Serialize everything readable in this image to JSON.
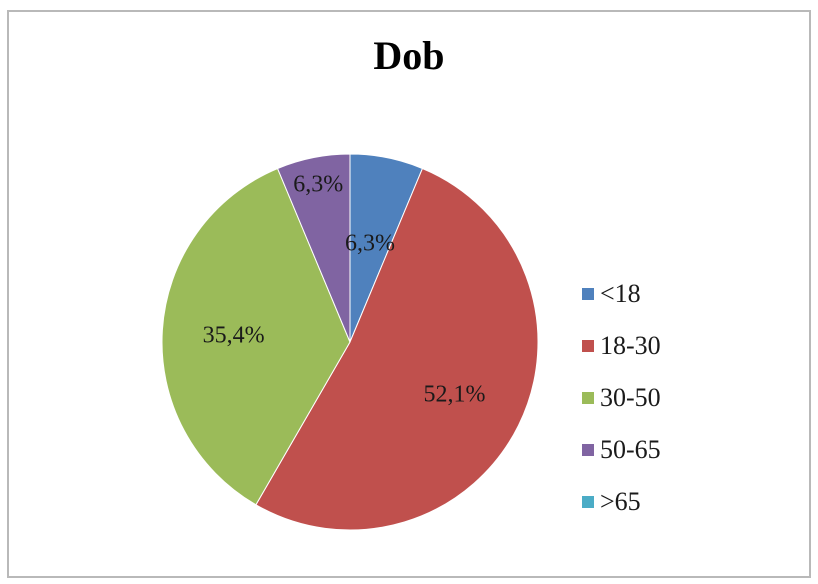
{
  "chart_data": {
    "type": "pie",
    "title": "Dob",
    "legend_position": "right",
    "slices": [
      {
        "label": "<18",
        "value": 6.3,
        "value_label": "6,3%",
        "color": "#4f81bd"
      },
      {
        "label": "18-30",
        "value": 52.1,
        "value_label": "52,1%",
        "color": "#c0504d"
      },
      {
        "label": "30-50",
        "value": 35.4,
        "value_label": "35,4%",
        "color": "#9bbb59"
      },
      {
        "label": "50-65",
        "value": 6.3,
        "value_label": "6,3%",
        "color": "#8064a2"
      },
      {
        "label": ">65",
        "value": 0,
        "value_label": "",
        "color": "#4bacc6"
      }
    ]
  }
}
